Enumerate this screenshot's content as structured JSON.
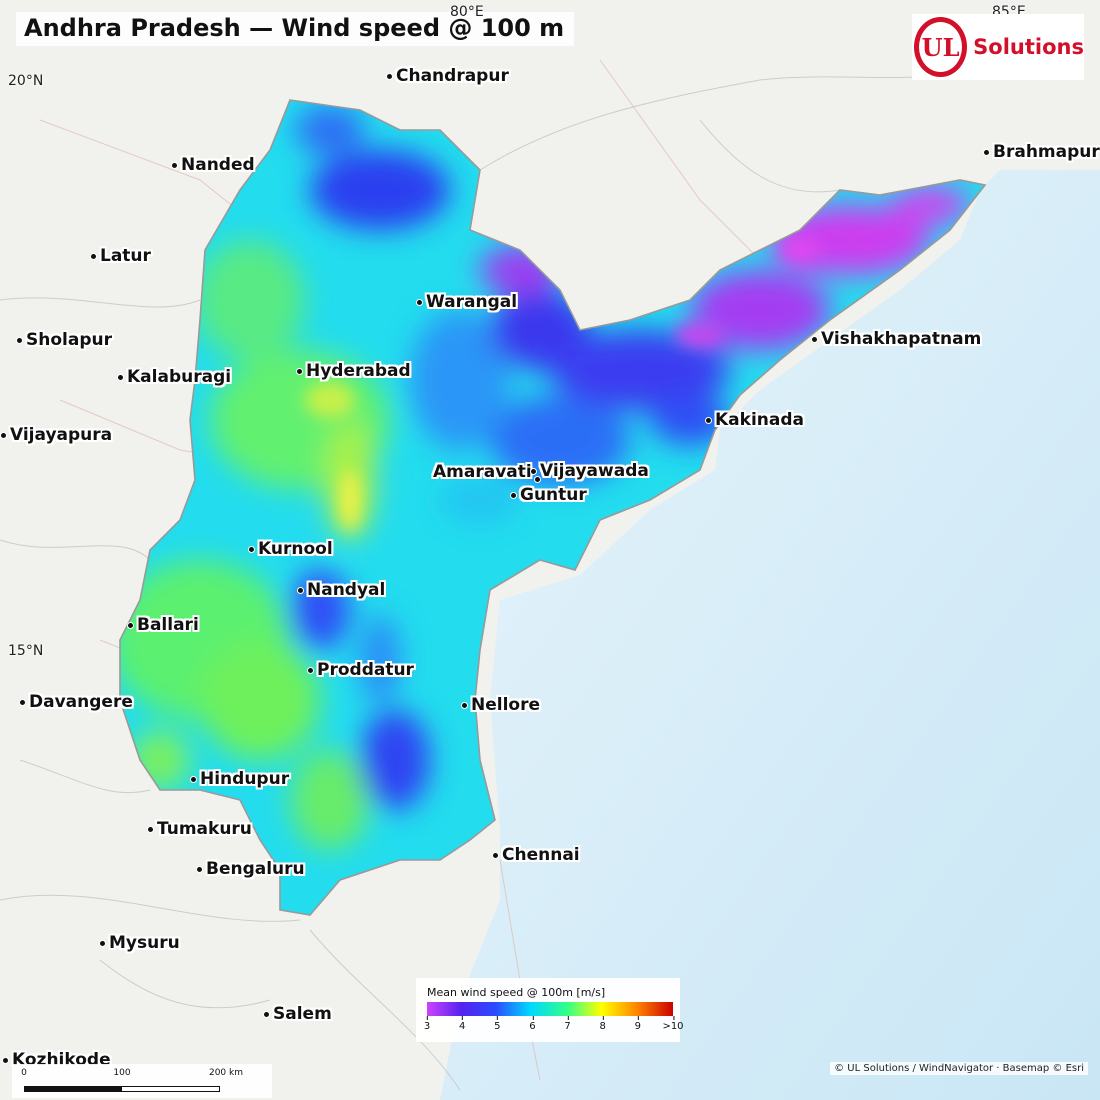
{
  "title": "Andhra Pradesh — Wind speed @ 100 m",
  "graticule": {
    "lon1": "80°E",
    "lon2": "85°E",
    "lat1": "20°N",
    "lat2": "15°N"
  },
  "logo": {
    "mark": "UL",
    "text": "Solutions",
    "color": "#d2102a"
  },
  "cities": [
    {
      "name": "Chandrapur"
    },
    {
      "name": "Nanded"
    },
    {
      "name": "Latur"
    },
    {
      "name": "Sholapur"
    },
    {
      "name": "Kalaburagi"
    },
    {
      "name": "Vijayapura"
    },
    {
      "name": "Warangal"
    },
    {
      "name": "Hyderabad"
    },
    {
      "name": "Brahmapur"
    },
    {
      "name": "Vishakhapatnam"
    },
    {
      "name": "Kakinada"
    },
    {
      "name": "Amaravati"
    },
    {
      "name": "Vijayawada"
    },
    {
      "name": "Guntur"
    },
    {
      "name": "Kurnool"
    },
    {
      "name": "Nandyal"
    },
    {
      "name": "Ballari"
    },
    {
      "name": "Proddatur"
    },
    {
      "name": "Davangere"
    },
    {
      "name": "Nellore"
    },
    {
      "name": "Hindupur"
    },
    {
      "name": "Tumakuru"
    },
    {
      "name": "Chennai"
    },
    {
      "name": "Bengaluru"
    },
    {
      "name": "Mysuru"
    },
    {
      "name": "Salem"
    },
    {
      "name": "Kozhikode"
    }
  ],
  "legend": {
    "title": "Mean wind speed @ 100m  [m/s]",
    "ticks": [
      "3",
      "4",
      "5",
      "6",
      "7",
      "8",
      "9",
      ">10"
    ],
    "colors": [
      "#cc44ff",
      "#5522ee",
      "#2a4cff",
      "#00d8ff",
      "#33ff88",
      "#ffff00",
      "#ff8800",
      "#cc0000"
    ]
  },
  "scalebar": {
    "labels": [
      "0",
      "100",
      "200 km"
    ]
  },
  "attribution": "© UL Solutions / WindNavigator · Basemap © Esri",
  "colors": {
    "land": "#f2f2ee",
    "sea": "#cfeaf7",
    "cyan": "#1ee3ee",
    "green": "#54f26a",
    "blue": "#2f56ff",
    "magenta": "#c93cf2"
  }
}
